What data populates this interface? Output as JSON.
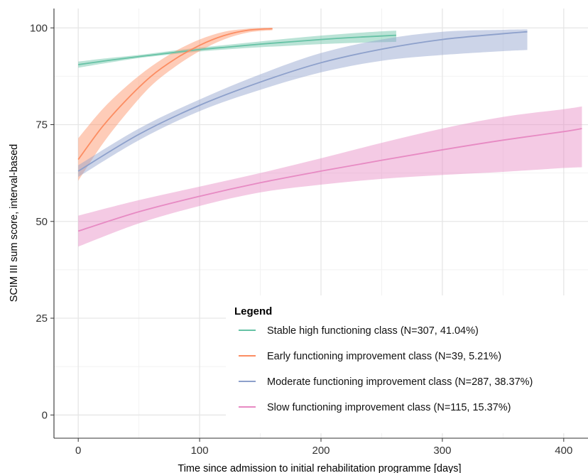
{
  "chart_data": {
    "type": "line",
    "title": "",
    "xlabel": "Time since admission to initial rehabilitation programme [days]",
    "ylabel": "SCIM III sum score, interval-based",
    "xlim": [
      -20,
      420
    ],
    "ylim": [
      -6,
      105
    ],
    "xticks": [
      0,
      100,
      200,
      300,
      400
    ],
    "yticks": [
      0,
      25,
      50,
      75,
      100
    ],
    "grid": true,
    "legend": {
      "title": "Legend",
      "placement": "bottom-right, inside plot"
    },
    "series": [
      {
        "name": "Stable high functioning class (N=307, 41.04%)",
        "color": "#66c2a5",
        "band": "confidence interval (shaded)",
        "x": [
          0,
          25,
          50,
          75,
          100,
          125,
          150,
          175,
          200,
          225,
          250,
          262
        ],
        "y": [
          90.5,
          91.6,
          92.6,
          93.5,
          94.4,
          95.1,
          95.8,
          96.4,
          97.0,
          97.5,
          97.9,
          98.1
        ],
        "lower": [
          89.7,
          91.0,
          92.2,
          93.1,
          93.9,
          94.5,
          95.0,
          95.4,
          95.8,
          96.1,
          96.3,
          96.4
        ],
        "upper": [
          91.3,
          92.2,
          93.0,
          94.0,
          94.9,
          95.7,
          96.5,
          97.3,
          98.0,
          98.6,
          99.1,
          99.3
        ]
      },
      {
        "name": "Early functioning improvement class (N=39, 5.21%)",
        "color": "#fc8d62",
        "band": "confidence interval (shaded)",
        "x": [
          0,
          20,
          40,
          60,
          80,
          100,
          120,
          140,
          160
        ],
        "y": [
          66.0,
          74.5,
          81.5,
          87.5,
          92.0,
          95.5,
          98.0,
          99.4,
          99.8
        ],
        "lower": [
          60.5,
          70.0,
          78.0,
          85.0,
          90.0,
          94.0,
          97.0,
          98.8,
          99.4
        ],
        "upper": [
          71.5,
          79.0,
          85.0,
          90.0,
          94.0,
          97.0,
          99.0,
          99.8,
          100.0
        ]
      },
      {
        "name": "Moderate functioning improvement class (N=287, 38.37%)",
        "color": "#8da0cb",
        "band": "confidence interval (shaded)",
        "x": [
          0,
          50,
          100,
          150,
          200,
          250,
          300,
          350,
          370
        ],
        "y": [
          63.0,
          72.5,
          80.0,
          86.0,
          91.0,
          94.5,
          97.0,
          98.5,
          99.0
        ],
        "lower": [
          61.5,
          71.0,
          78.5,
          84.0,
          88.5,
          91.5,
          93.0,
          94.0,
          94.3
        ],
        "upper": [
          64.5,
          74.0,
          81.5,
          88.0,
          93.5,
          97.0,
          99.0,
          99.5,
          99.6
        ]
      },
      {
        "name": "Slow functioning improvement class (N=115, 15.37%)",
        "color": "#e78ac3",
        "band": "confidence interval (shaded)",
        "x": [
          0,
          50,
          100,
          150,
          200,
          250,
          300,
          350,
          400,
          415
        ],
        "y": [
          47.5,
          52.5,
          56.5,
          60.0,
          63.0,
          65.8,
          68.5,
          71.0,
          73.2,
          74.0
        ],
        "lower": [
          43.5,
          49.5,
          54.0,
          57.5,
          59.5,
          61.0,
          62.0,
          62.8,
          63.8,
          64.0
        ],
        "upper": [
          51.5,
          55.5,
          59.0,
          62.5,
          66.3,
          70.3,
          74.0,
          77.0,
          79.0,
          79.7
        ]
      }
    ]
  }
}
